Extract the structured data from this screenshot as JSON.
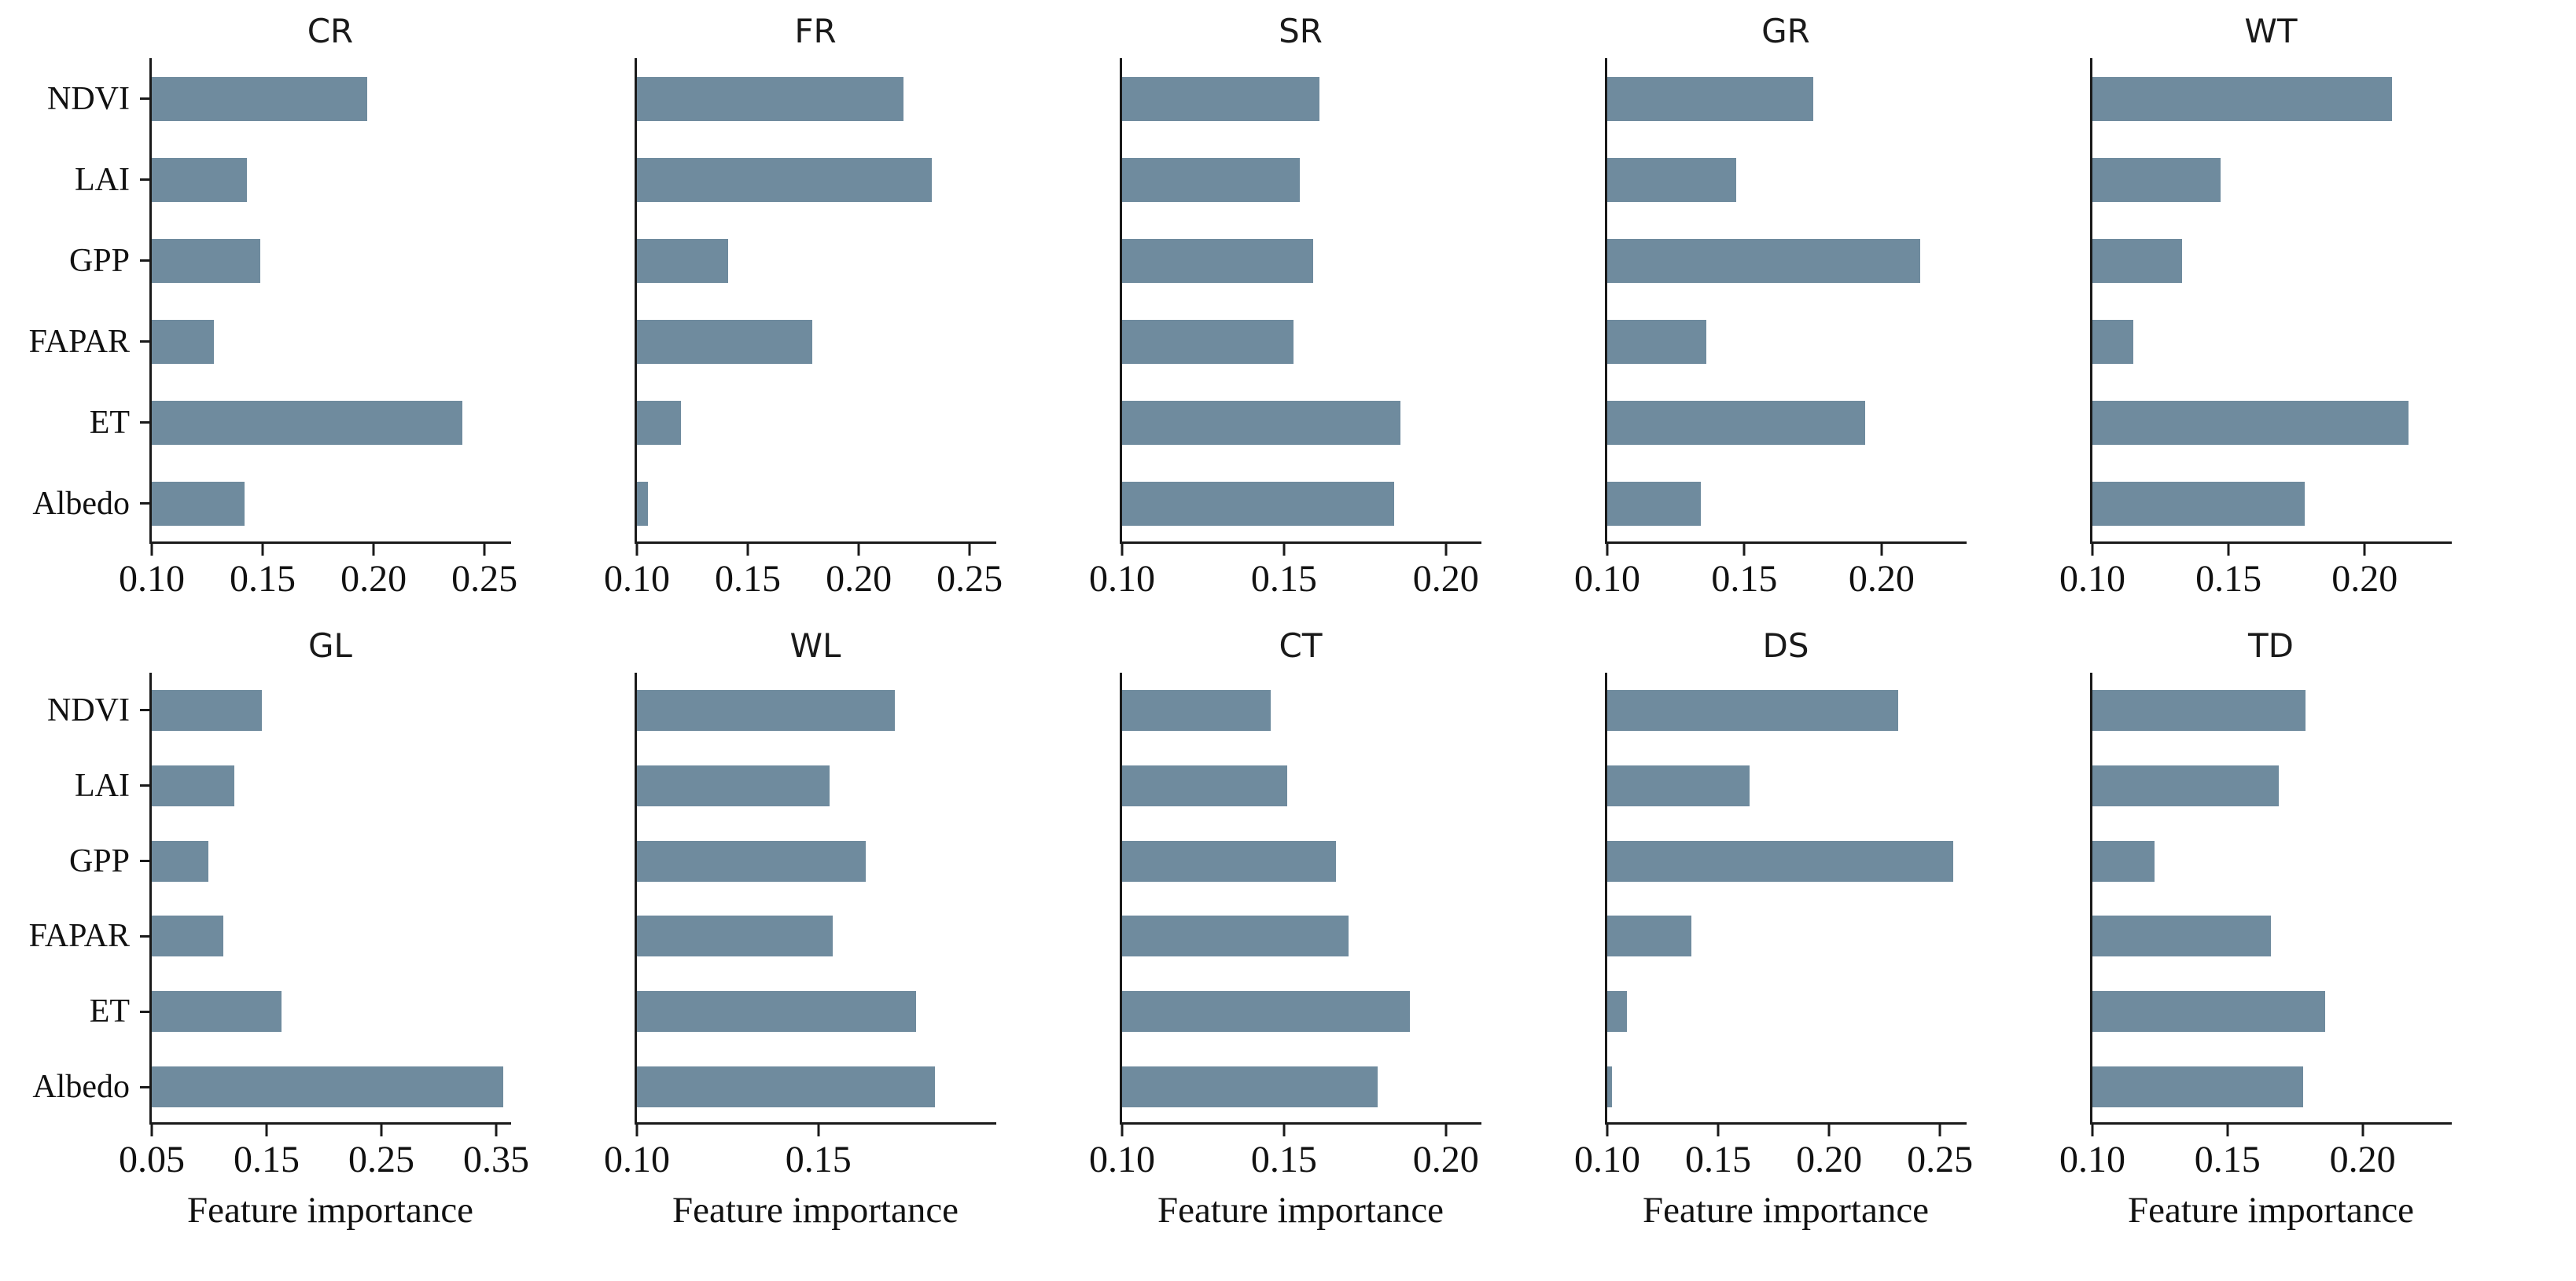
{
  "figure": {
    "background": "#ffffff",
    "bar_color": "#6f8b9e",
    "axis_color": "#1a1a1a",
    "x_axis_label": "Feature importance",
    "categories": [
      "NDVI",
      "LAI",
      "GPP",
      "FAPAR",
      "ET",
      "Albedo"
    ],
    "layout": {
      "rows": 2,
      "cols": 5,
      "grid": "off",
      "y_labels_on_first_column_only": true
    }
  },
  "chart_data": [
    {
      "type": "bar",
      "orientation": "horizontal",
      "title": "CR",
      "categories": [
        "NDVI",
        "LAI",
        "GPP",
        "FAPAR",
        "ET",
        "Albedo"
      ],
      "values": [
        0.197,
        0.143,
        0.149,
        0.128,
        0.24,
        0.142
      ],
      "xlim": [
        0.1,
        0.262
      ],
      "xticks": [
        0.1,
        0.15,
        0.2,
        0.25
      ],
      "xlabel": ""
    },
    {
      "type": "bar",
      "orientation": "horizontal",
      "title": "FR",
      "categories": [
        "NDVI",
        "LAI",
        "GPP",
        "FAPAR",
        "ET",
        "Albedo"
      ],
      "values": [
        0.22,
        0.233,
        0.141,
        0.179,
        0.12,
        0.105
      ],
      "xlim": [
        0.1,
        0.262
      ],
      "xticks": [
        0.1,
        0.15,
        0.2,
        0.25
      ],
      "xlabel": ""
    },
    {
      "type": "bar",
      "orientation": "horizontal",
      "title": "SR",
      "categories": [
        "NDVI",
        "LAI",
        "GPP",
        "FAPAR",
        "ET",
        "Albedo"
      ],
      "values": [
        0.161,
        0.155,
        0.159,
        0.153,
        0.186,
        0.184
      ],
      "xlim": [
        0.1,
        0.211
      ],
      "xticks": [
        0.1,
        0.15,
        0.2
      ],
      "xlabel": ""
    },
    {
      "type": "bar",
      "orientation": "horizontal",
      "title": "GR",
      "categories": [
        "NDVI",
        "LAI",
        "GPP",
        "FAPAR",
        "ET",
        "Albedo"
      ],
      "values": [
        0.175,
        0.147,
        0.214,
        0.136,
        0.194,
        0.134
      ],
      "xlim": [
        0.1,
        0.231
      ],
      "xticks": [
        0.1,
        0.15,
        0.2
      ],
      "xlabel": ""
    },
    {
      "type": "bar",
      "orientation": "horizontal",
      "title": "WT",
      "categories": [
        "NDVI",
        "LAI",
        "GPP",
        "FAPAR",
        "ET",
        "Albedo"
      ],
      "values": [
        0.21,
        0.147,
        0.133,
        0.115,
        0.216,
        0.178
      ],
      "xlim": [
        0.1,
        0.232
      ],
      "xticks": [
        0.1,
        0.15,
        0.2
      ],
      "xlabel": ""
    },
    {
      "type": "bar",
      "orientation": "horizontal",
      "title": "GL",
      "categories": [
        "NDVI",
        "LAI",
        "GPP",
        "FAPAR",
        "ET",
        "Albedo"
      ],
      "values": [
        0.146,
        0.122,
        0.099,
        0.112,
        0.163,
        0.356
      ],
      "xlim": [
        0.05,
        0.363
      ],
      "xticks": [
        0.05,
        0.15,
        0.25,
        0.35
      ],
      "xlabel": "Feature importance"
    },
    {
      "type": "bar",
      "orientation": "horizontal",
      "title": "WL",
      "categories": [
        "NDVI",
        "LAI",
        "GPP",
        "FAPAR",
        "ET",
        "Albedo"
      ],
      "values": [
        0.171,
        0.153,
        0.163,
        0.154,
        0.177,
        0.182
      ],
      "xlim": [
        0.1,
        0.199
      ],
      "xticks": [
        0.1,
        0.15
      ],
      "xlabel": "Feature importance"
    },
    {
      "type": "bar",
      "orientation": "horizontal",
      "title": "CT",
      "categories": [
        "NDVI",
        "LAI",
        "GPP",
        "FAPAR",
        "ET",
        "Albedo"
      ],
      "values": [
        0.146,
        0.151,
        0.166,
        0.17,
        0.189,
        0.179
      ],
      "xlim": [
        0.1,
        0.211
      ],
      "xticks": [
        0.1,
        0.15,
        0.2
      ],
      "xlabel": "Feature importance"
    },
    {
      "type": "bar",
      "orientation": "horizontal",
      "title": "DS",
      "categories": [
        "NDVI",
        "LAI",
        "GPP",
        "FAPAR",
        "ET",
        "Albedo"
      ],
      "values": [
        0.231,
        0.164,
        0.256,
        0.138,
        0.109,
        0.102
      ],
      "xlim": [
        0.1,
        0.262
      ],
      "xticks": [
        0.1,
        0.15,
        0.2,
        0.25
      ],
      "xlabel": "Feature importance"
    },
    {
      "type": "bar",
      "orientation": "horizontal",
      "title": "TD",
      "categories": [
        "NDVI",
        "LAI",
        "GPP",
        "FAPAR",
        "ET",
        "Albedo"
      ],
      "values": [
        0.179,
        0.169,
        0.123,
        0.166,
        0.186,
        0.178
      ],
      "xlim": [
        0.1,
        0.233
      ],
      "xticks": [
        0.1,
        0.15,
        0.2
      ],
      "xlabel": "Feature importance"
    }
  ]
}
